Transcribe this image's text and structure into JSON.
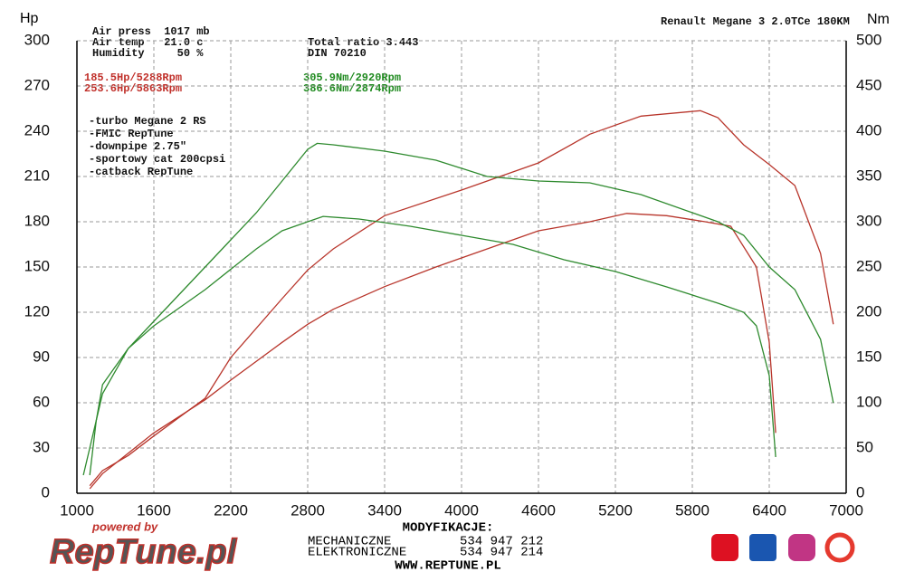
{
  "chart_data": {
    "type": "line",
    "title": "Renault Megane 3 2.0TCe 180KM",
    "y_label": "Hp",
    "y2_label": "Nm",
    "xlim": [
      1000,
      7000
    ],
    "xticks": [
      1000,
      1600,
      2200,
      2800,
      3400,
      4000,
      4600,
      5200,
      5800,
      6400,
      7000
    ],
    "ylim": [
      0,
      300
    ],
    "yticks": [
      0,
      30,
      60,
      90,
      120,
      150,
      180,
      210,
      240,
      270,
      300
    ],
    "y2lim": [
      0,
      500
    ],
    "y2ticks": [
      0,
      50,
      100,
      150,
      200,
      250,
      300,
      350,
      400,
      450,
      500
    ],
    "grid": true,
    "conditions": [
      "Air press  1017 mb",
      "Air temp   21.0 c",
      "Humidity     50 %"
    ],
    "test_info": [
      "Total ratio 3.443",
      "DIN 70210"
    ],
    "power_peaks": [
      "185.5Hp/5288Rpm",
      "253.6Hp/5863Rpm"
    ],
    "torque_peaks": [
      "305.9Nm/2920Rpm",
      "386.6Nm/2874Rpm"
    ],
    "mods": [
      "-turbo Megane 2 RS",
      "-FMIC RepTune",
      "-downpipe 2.75\"",
      "-sportowy cat 200cpsi",
      "-catback RepTune"
    ],
    "series": [
      {
        "color": "#b8352b",
        "axis": "y",
        "x": [
          1100,
          1200,
          1600,
          2000,
          2200,
          2600,
          2800,
          3000,
          3400,
          3800,
          4000,
          4400,
          4600,
          5000,
          5288,
          5600,
          5900,
          6100,
          6300,
          6400,
          6450
        ],
        "values": [
          3,
          13,
          40,
          62,
          75,
          100,
          112,
          122,
          137,
          150,
          156,
          168,
          174,
          180,
          185.5,
          184,
          180,
          177,
          150,
          100,
          40
        ]
      },
      {
        "color": "#b8352b",
        "axis": "y",
        "x": [
          1100,
          1200,
          1400,
          1600,
          2000,
          2200,
          2600,
          2800,
          3000,
          3400,
          4000,
          4600,
          5000,
          5400,
          5863,
          6000,
          6200,
          6400,
          6600,
          6800,
          6900
        ],
        "values": [
          5,
          15,
          25,
          38,
          63,
          90,
          129,
          148,
          162,
          184,
          201,
          219,
          238,
          250,
          253.6,
          249,
          231,
          218,
          204,
          159,
          112
        ]
      },
      {
        "color": "#2e8a2e",
        "axis": "y2",
        "x": [
          1050,
          1100,
          1200,
          1400,
          1600,
          2000,
          2400,
          2600,
          2800,
          2920,
          3200,
          3600,
          4000,
          4400,
          4800,
          5200,
          5600,
          6000,
          6200,
          6300,
          6400,
          6450
        ],
        "values": [
          20,
          50,
          110,
          160,
          185,
          225,
          270,
          290,
          300,
          305.9,
          303,
          295,
          285,
          275,
          258,
          245,
          228,
          210,
          200,
          185,
          130,
          40
        ]
      },
      {
        "color": "#2e8a2e",
        "axis": "y2",
        "x": [
          1100,
          1150,
          1200,
          1400,
          1600,
          2000,
          2400,
          2600,
          2800,
          2874,
          3000,
          3400,
          3800,
          4200,
          4600,
          5000,
          5400,
          5800,
          6000,
          6200,
          6400,
          6600,
          6800,
          6900
        ],
        "values": [
          20,
          80,
          120,
          160,
          190,
          250,
          310,
          345,
          380,
          386.6,
          385,
          378,
          368,
          350,
          345,
          343,
          330,
          310,
          300,
          285,
          250,
          225,
          170,
          100
        ]
      }
    ]
  },
  "footer": {
    "powered": "powered by",
    "brand": "RepTune.pl",
    "heading": "MODYFIKACJE:",
    "contacts": [
      [
        "MECHANICZNE",
        "534 947 212"
      ],
      [
        "ELEKTRONICZNE",
        "534 947 214"
      ]
    ],
    "website": "WWW.REPTUNE.PL"
  }
}
